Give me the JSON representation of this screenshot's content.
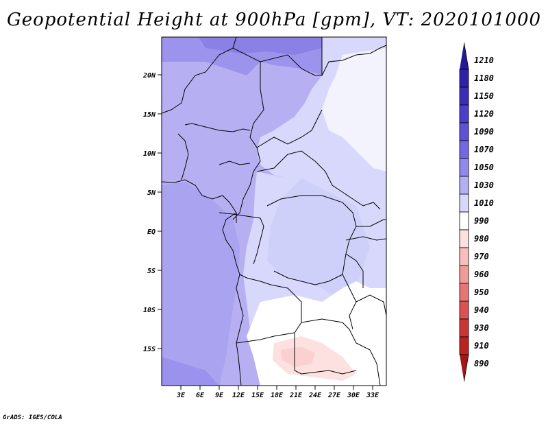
{
  "title": "Geopotential Height at 900hPa [gpm], VT: 2020101000",
  "footer": "GrADS: IGES/COLA",
  "axes": {
    "lat_labels": [
      "20N",
      "15N",
      "10N",
      "5N",
      "EQ",
      "5S",
      "10S",
      "15S"
    ],
    "lon_labels": [
      "3E",
      "6E",
      "9E",
      "12E",
      "15E",
      "18E",
      "21E",
      "24E",
      "27E",
      "30E",
      "33E"
    ]
  },
  "legend": {
    "levels": [
      {
        "label": "1210",
        "color": "#251a96"
      },
      {
        "label": "1180",
        "color": "#2f22a8"
      },
      {
        "label": "1150",
        "color": "#3a2eb8"
      },
      {
        "label": "1120",
        "color": "#4a3fc8"
      },
      {
        "label": "1090",
        "color": "#5d52d6"
      },
      {
        "label": "1070",
        "color": "#7468e0"
      },
      {
        "label": "1050",
        "color": "#9088ea"
      },
      {
        "label": "1030",
        "color": "#b4aef4"
      },
      {
        "label": "1010",
        "color": "#d7d8fb"
      },
      {
        "label": "990",
        "color": "#ffffff"
      },
      {
        "label": "980",
        "color": "#fde0e0"
      },
      {
        "label": "970",
        "color": "#f8bdbd"
      },
      {
        "label": "960",
        "color": "#f09a9a"
      },
      {
        "label": "950",
        "color": "#e67676"
      },
      {
        "label": "940",
        "color": "#da5252"
      },
      {
        "label": "930",
        "color": "#cc3535"
      },
      {
        "label": "910",
        "color": "#bb2222"
      },
      {
        "label": "890",
        "color": "#a51616"
      }
    ]
  }
}
